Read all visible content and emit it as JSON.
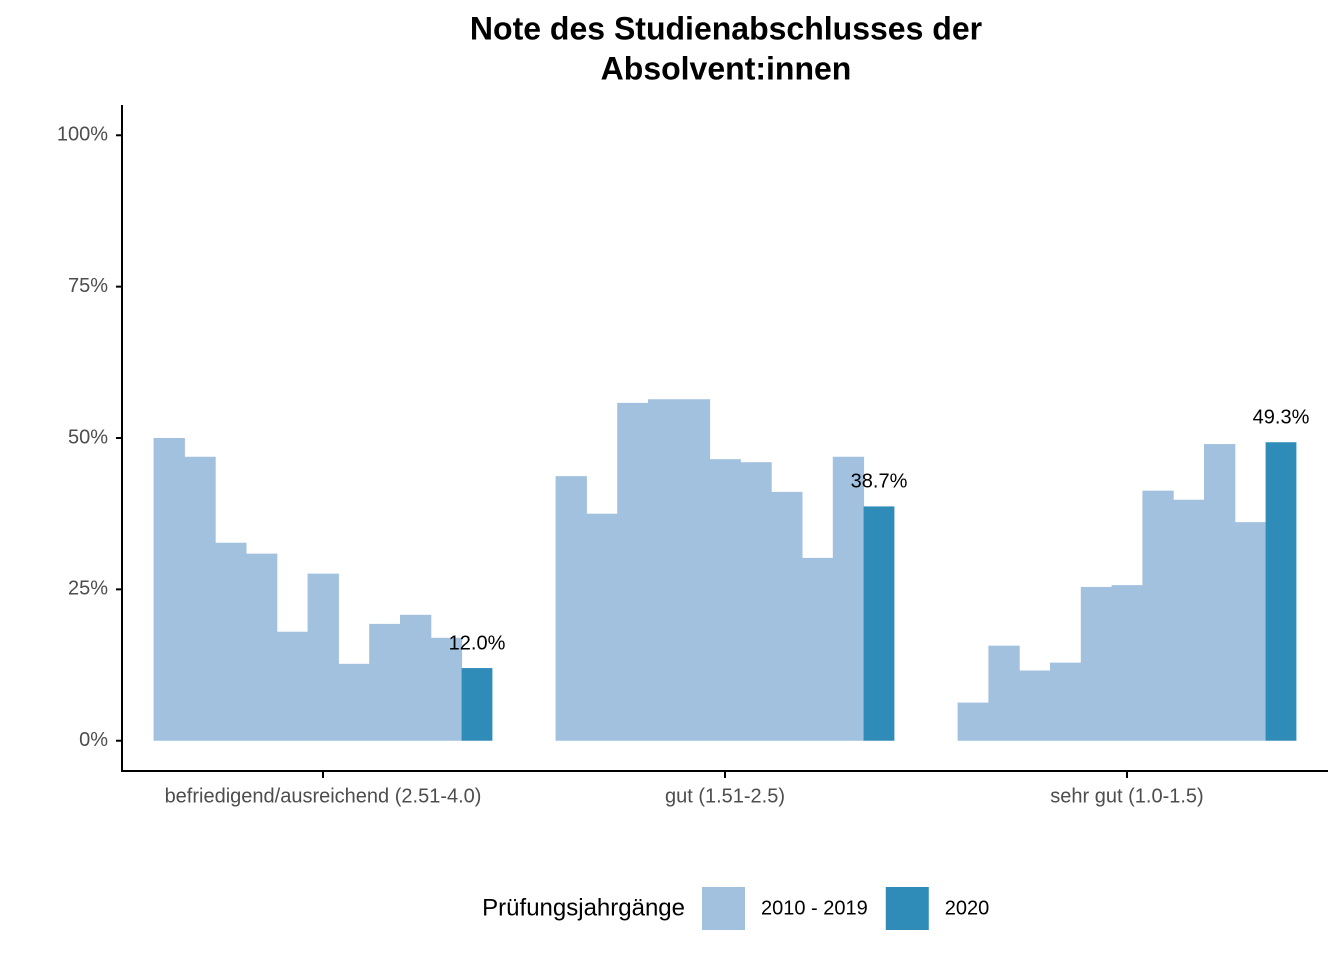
{
  "chart_data": {
    "type": "bar",
    "title": [
      "Note des Studienabschlusses der",
      "Absolvent:innen"
    ],
    "categories": [
      "befriedigend/ausreichend (2.51-4.0)",
      "gut (1.51-2.5)",
      "sehr gut (1.0-1.5)"
    ],
    "series": [
      {
        "name": "2010 - 2019",
        "color": "#a1c1de",
        "values": [
          [
            50.0,
            46.9,
            32.7,
            30.9,
            18.0,
            27.6,
            12.7,
            19.3,
            20.8,
            17.0
          ],
          [
            43.7,
            37.5,
            55.8,
            56.4,
            56.4,
            46.5,
            46.0,
            41.1,
            30.2,
            46.9
          ],
          [
            6.3,
            15.7,
            11.6,
            12.9,
            25.4,
            25.7,
            41.3,
            39.8,
            49.0,
            36.1
          ]
        ]
      },
      {
        "name": "2020",
        "color": "#2f8bb8",
        "values": [
          12.0,
          38.7,
          49.3
        ],
        "value_labels": [
          "12.0%",
          "38.7%",
          "49.3%"
        ]
      }
    ],
    "ylim": [
      -5,
      105
    ],
    "yticks": [
      {
        "value": 0,
        "label": "0%"
      },
      {
        "value": 25,
        "label": "25%"
      },
      {
        "value": 50,
        "label": "50%"
      },
      {
        "value": 75,
        "label": "75%"
      },
      {
        "value": 100,
        "label": "100%"
      }
    ],
    "legend_title": "Prüfungsjahrgänge",
    "legend_position": "bottom"
  }
}
